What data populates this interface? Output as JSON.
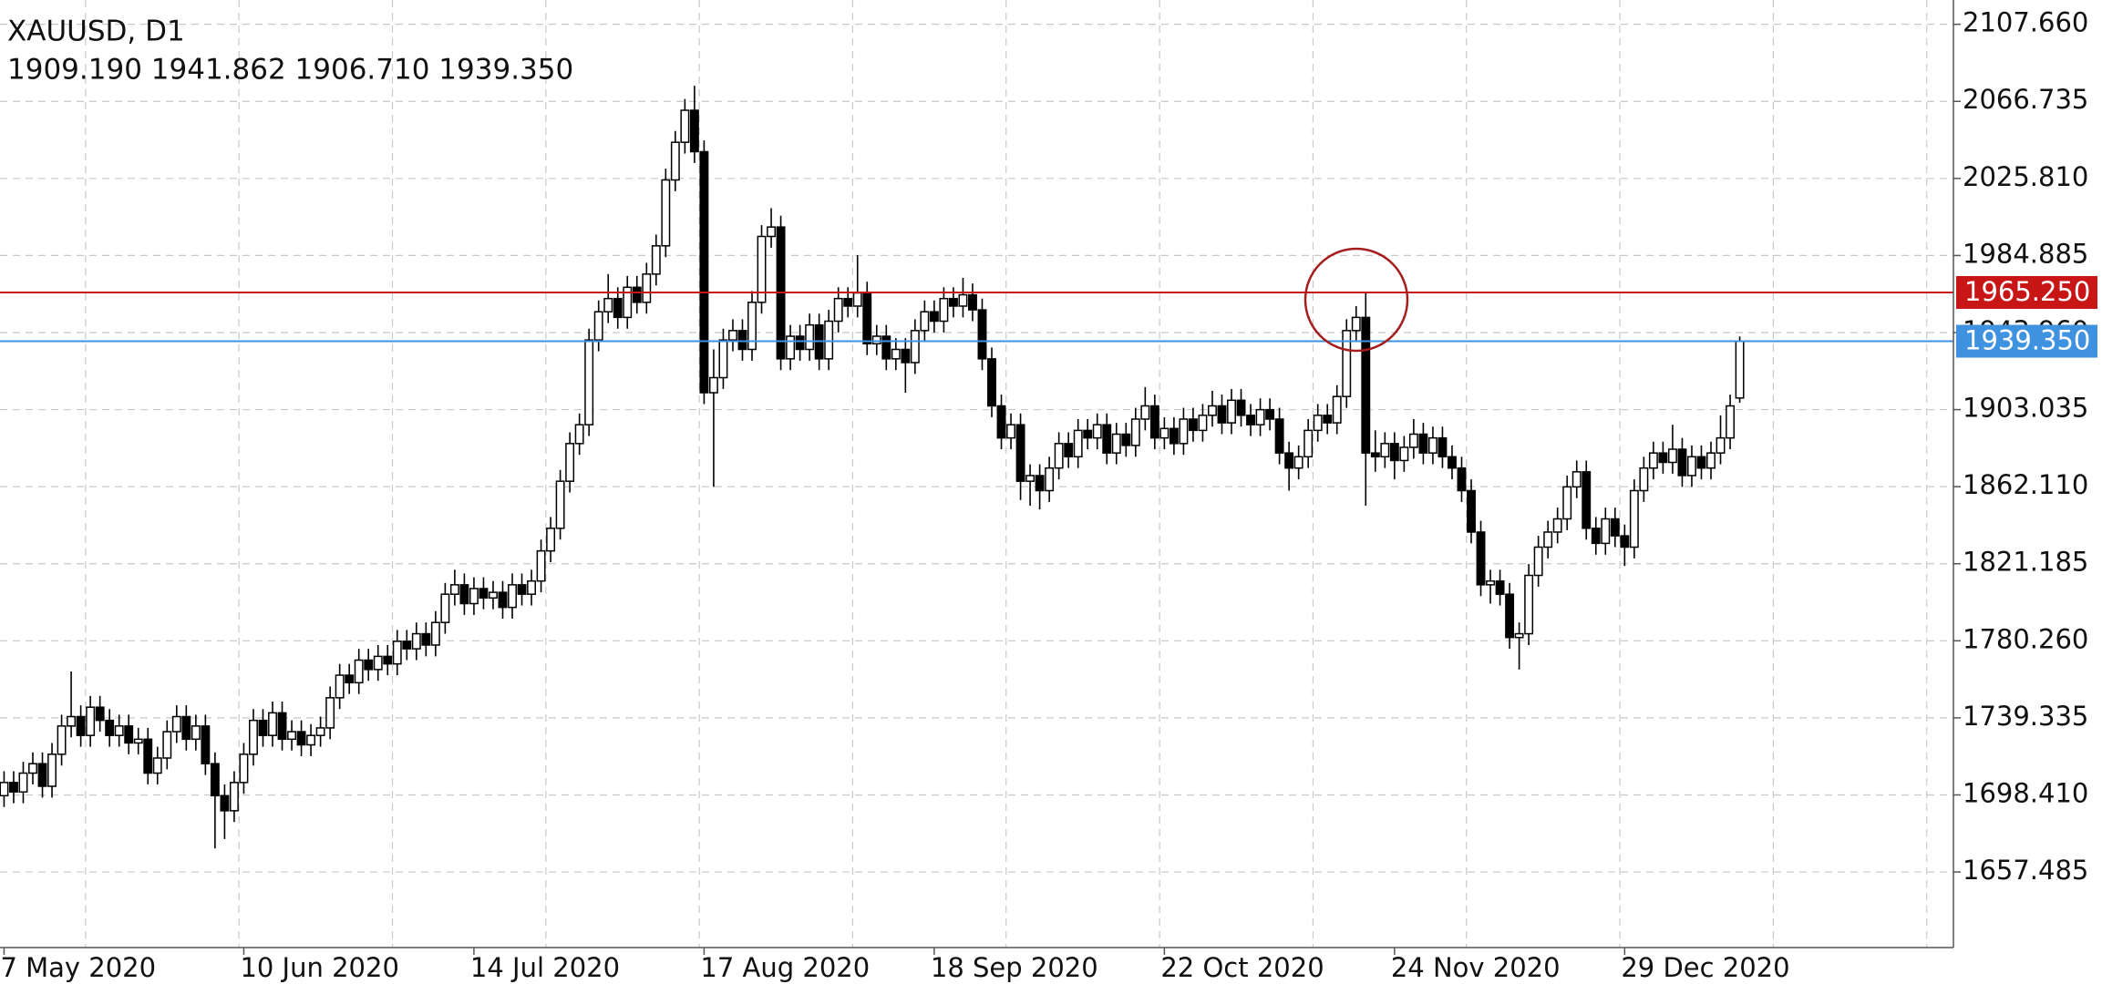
{
  "chart_data": {
    "type": "candlestick",
    "title": "XAUUSD, D1",
    "subtitle": "1909.190 1941.862 1906.710 1939.350",
    "categories": [
      "7 May 2020",
      null,
      null,
      null,
      null,
      null,
      null,
      null,
      null,
      null,
      null,
      null,
      null,
      null,
      null,
      null,
      null,
      null,
      null,
      null,
      null,
      null,
      null,
      null,
      null,
      "10 Jun 2020",
      null,
      null,
      null,
      null,
      null,
      null,
      null,
      null,
      null,
      null,
      null,
      null,
      null,
      null,
      null,
      null,
      null,
      null,
      null,
      null,
      null,
      null,
      null,
      "14 Jul 2020",
      null,
      null,
      null,
      null,
      null,
      null,
      null,
      null,
      null,
      null,
      null,
      null,
      null,
      null,
      null,
      null,
      null,
      null,
      null,
      null,
      null,
      null,
      null,
      "17 Aug 2020",
      null,
      null,
      null,
      null,
      null,
      null,
      null,
      null,
      null,
      null,
      null,
      null,
      null,
      null,
      null,
      null,
      null,
      null,
      null,
      null,
      null,
      null,
      null,
      "18 Sep 2020",
      null,
      null,
      null,
      null,
      null,
      null,
      null,
      null,
      null,
      null,
      null,
      null,
      null,
      null,
      null,
      null,
      null,
      null,
      null,
      null,
      null,
      null,
      null,
      "22 Oct 2020",
      null,
      null,
      null,
      null,
      null,
      null,
      null,
      null,
      null,
      null,
      null,
      null,
      null,
      null,
      null,
      null,
      null,
      null,
      null,
      null,
      null,
      null,
      null,
      "24 Nov 2020",
      null,
      null,
      null,
      null,
      null,
      null,
      null,
      null,
      null,
      null,
      null,
      null,
      null,
      null,
      null,
      null,
      null,
      null,
      null,
      null,
      null,
      null,
      null,
      "29 Dec 2020",
      null,
      null,
      null,
      null,
      null,
      null,
      null,
      null,
      null,
      null,
      null,
      null
    ],
    "open": [
      1698,
      1705,
      1700,
      1710,
      1715,
      1703,
      1720,
      1735,
      1740,
      1730,
      1745,
      1738,
      1730,
      1735,
      1726,
      1728,
      1710,
      1718,
      1732,
      1740,
      1728,
      1735,
      1715,
      1698,
      1690,
      1705,
      1720,
      1738,
      1730,
      1742,
      1728,
      1732,
      1725,
      1730,
      1734,
      1750,
      1762,
      1758,
      1770,
      1765,
      1772,
      1768,
      1780,
      1776,
      1784,
      1778,
      1790,
      1805,
      1810,
      1800,
      1808,
      1803,
      1806,
      1798,
      1810,
      1805,
      1812,
      1828,
      1840,
      1865,
      1885,
      1895,
      1940,
      1955,
      1962,
      1952,
      1968,
      1960,
      1975,
      1990,
      2025,
      2045,
      2062,
      2040,
      1912,
      1920,
      1940,
      1945,
      1935,
      1960,
      1995,
      2000,
      1930,
      1942,
      1935,
      1948,
      1930,
      1950,
      1962,
      1958,
      1965,
      1938,
      1942,
      1930,
      1935,
      1928,
      1945,
      1955,
      1950,
      1962,
      1958,
      1964,
      1956,
      1930,
      1905,
      1888,
      1895,
      1865,
      1868,
      1860,
      1872,
      1885,
      1878,
      1892,
      1888,
      1895,
      1880,
      1890,
      1884,
      1898,
      1905,
      1888,
      1893,
      1885,
      1898,
      1892,
      1900,
      1905,
      1896,
      1908,
      1900,
      1895,
      1903,
      1898,
      1880,
      1872,
      1878,
      1892,
      1900,
      1896,
      1910,
      1945,
      1952,
      1880,
      1878,
      1885,
      1876,
      1883,
      1890,
      1880,
      1888,
      1878,
      1872,
      1860,
      1838,
      1810,
      1812,
      1805,
      1782,
      1784,
      1815,
      1830,
      1838,
      1845,
      1862,
      1870,
      1840,
      1832,
      1845,
      1836,
      1830,
      1860,
      1872,
      1880,
      1875,
      1882,
      1868,
      1878,
      1872,
      1880,
      1888,
      1909.19
    ],
    "high": [
      1711,
      1711,
      1716,
      1721,
      1721,
      1726,
      1741,
      1764,
      1746,
      1751,
      1751,
      1744,
      1741,
      1741,
      1734,
      1734,
      1724,
      1738,
      1746,
      1746,
      1741,
      1741,
      1721,
      1704,
      1711,
      1726,
      1744,
      1744,
      1748,
      1748,
      1738,
      1738,
      1736,
      1740,
      1756,
      1768,
      1768,
      1776,
      1776,
      1778,
      1778,
      1786,
      1786,
      1790,
      1790,
      1796,
      1811,
      1818,
      1816,
      1814,
      1814,
      1812,
      1812,
      1816,
      1816,
      1818,
      1834,
      1846,
      1871,
      1891,
      1901,
      1946,
      1961,
      1975,
      1968,
      1974,
      1974,
      1981,
      1996,
      2031,
      2051,
      2068,
      2075,
      2046,
      1935,
      1946,
      1951,
      1951,
      1966,
      2001,
      2010,
      2006,
      1948,
      1948,
      1954,
      1954,
      1956,
      1968,
      1968,
      1985,
      1971,
      1948,
      1948,
      1941,
      1941,
      1951,
      1961,
      1961,
      1968,
      1968,
      1973,
      1970,
      1962,
      1936,
      1911,
      1901,
      1901,
      1874,
      1874,
      1878,
      1891,
      1891,
      1898,
      1898,
      1901,
      1901,
      1896,
      1896,
      1904,
      1915,
      1911,
      1899,
      1899,
      1904,
      1904,
      1906,
      1913,
      1911,
      1914,
      1914,
      1906,
      1909,
      1909,
      1904,
      1886,
      1884,
      1898,
      1906,
      1906,
      1916,
      1951,
      1958,
      1965,
      1892,
      1891,
      1891,
      1889,
      1898,
      1896,
      1894,
      1894,
      1884,
      1878,
      1866,
      1844,
      1818,
      1818,
      1811,
      1790,
      1821,
      1836,
      1844,
      1851,
      1868,
      1876,
      1876,
      1846,
      1851,
      1851,
      1842,
      1866,
      1878,
      1886,
      1886,
      1895,
      1888,
      1884,
      1884,
      1886,
      1900,
      1911,
      1941.862
    ],
    "low": [
      1692,
      1694,
      1694,
      1704,
      1697,
      1697,
      1714,
      1729,
      1724,
      1724,
      1732,
      1724,
      1724,
      1720,
      1720,
      1704,
      1704,
      1712,
      1726,
      1722,
      1722,
      1709,
      1670,
      1675,
      1684,
      1699,
      1714,
      1724,
      1724,
      1722,
      1722,
      1719,
      1719,
      1724,
      1728,
      1744,
      1752,
      1752,
      1759,
      1759,
      1762,
      1762,
      1770,
      1770,
      1772,
      1772,
      1784,
      1799,
      1794,
      1794,
      1797,
      1797,
      1792,
      1792,
      1799,
      1799,
      1806,
      1822,
      1834,
      1859,
      1879,
      1889,
      1934,
      1949,
      1946,
      1946,
      1954,
      1954,
      1969,
      1984,
      2019,
      2039,
      2034,
      1906,
      1862,
      1914,
      1934,
      1929,
      1929,
      1954,
      1989,
      1924,
      1924,
      1929,
      1929,
      1924,
      1924,
      1944,
      1952,
      1952,
      1932,
      1932,
      1924,
      1924,
      1912,
      1922,
      1939,
      1944,
      1944,
      1952,
      1952,
      1950,
      1924,
      1899,
      1882,
      1882,
      1855,
      1852,
      1850,
      1854,
      1866,
      1872,
      1872,
      1882,
      1882,
      1874,
      1874,
      1878,
      1878,
      1892,
      1882,
      1882,
      1879,
      1879,
      1886,
      1886,
      1894,
      1890,
      1890,
      1894,
      1889,
      1889,
      1892,
      1874,
      1860,
      1866,
      1872,
      1886,
      1890,
      1890,
      1904,
      1939,
      1852,
      1870,
      1872,
      1866,
      1870,
      1877,
      1874,
      1874,
      1872,
      1866,
      1854,
      1832,
      1804,
      1800,
      1799,
      1776,
      1765,
      1778,
      1809,
      1824,
      1832,
      1839,
      1856,
      1834,
      1826,
      1826,
      1830,
      1820,
      1824,
      1854,
      1866,
      1869,
      1869,
      1862,
      1862,
      1866,
      1866,
      1874,
      1882,
      1906.71
    ],
    "close": [
      1705,
      1700,
      1710,
      1715,
      1703,
      1720,
      1735,
      1740,
      1730,
      1745,
      1738,
      1730,
      1735,
      1726,
      1728,
      1710,
      1718,
      1732,
      1740,
      1728,
      1735,
      1715,
      1698,
      1690,
      1705,
      1720,
      1738,
      1730,
      1742,
      1728,
      1732,
      1725,
      1730,
      1734,
      1750,
      1762,
      1758,
      1770,
      1765,
      1772,
      1768,
      1780,
      1776,
      1784,
      1778,
      1790,
      1805,
      1810,
      1800,
      1808,
      1803,
      1806,
      1798,
      1810,
      1805,
      1812,
      1828,
      1840,
      1865,
      1885,
      1895,
      1940,
      1955,
      1962,
      1952,
      1968,
      1960,
      1975,
      1990,
      2025,
      2045,
      2062,
      2040,
      1912,
      1920,
      1940,
      1945,
      1935,
      1960,
      1995,
      2000,
      1930,
      1942,
      1935,
      1948,
      1930,
      1950,
      1962,
      1958,
      1965,
      1938,
      1942,
      1930,
      1935,
      1928,
      1945,
      1955,
      1950,
      1962,
      1958,
      1964,
      1956,
      1930,
      1905,
      1888,
      1895,
      1865,
      1868,
      1860,
      1872,
      1885,
      1878,
      1892,
      1888,
      1895,
      1880,
      1890,
      1884,
      1898,
      1905,
      1888,
      1893,
      1885,
      1898,
      1892,
      1900,
      1905,
      1896,
      1908,
      1900,
      1895,
      1903,
      1898,
      1880,
      1872,
      1878,
      1892,
      1900,
      1896,
      1910,
      1945,
      1952,
      1880,
      1878,
      1885,
      1876,
      1883,
      1890,
      1880,
      1888,
      1878,
      1872,
      1860,
      1838,
      1810,
      1812,
      1805,
      1782,
      1784,
      1815,
      1830,
      1838,
      1845,
      1862,
      1870,
      1840,
      1832,
      1845,
      1836,
      1830,
      1860,
      1872,
      1880,
      1875,
      1882,
      1868,
      1878,
      1872,
      1880,
      1888,
      1905,
      1939.35
    ],
    "ylim": [
      1617.35,
      2120.56
    ],
    "yticks": [
      {
        "value": 2107.66,
        "label": "2107.660"
      },
      {
        "value": 2066.735,
        "label": "2066.735"
      },
      {
        "value": 2025.81,
        "label": "2025.810"
      },
      {
        "value": 1984.885,
        "label": "1984.885"
      },
      {
        "value": 1943.96,
        "label": "1943.960"
      },
      {
        "value": 1903.035,
        "label": "1903.035"
      },
      {
        "value": 1862.11,
        "label": "1862.110"
      },
      {
        "value": 1821.185,
        "label": "1821.185"
      },
      {
        "value": 1780.26,
        "label": "1780.260"
      },
      {
        "value": 1739.335,
        "label": "1739.335"
      },
      {
        "value": 1698.41,
        "label": "1698.410"
      },
      {
        "value": 1657.485,
        "label": "1657.485"
      }
    ],
    "grid": true,
    "up_color": "#ffffff",
    "down_color": "#000000",
    "edge_color": "#000000",
    "lines": [
      {
        "value": 1965.25,
        "label": "1965.250",
        "color": "#c81616"
      },
      {
        "value": 1939.35,
        "label": "1939.350",
        "color": "#3e92e0"
      }
    ]
  }
}
